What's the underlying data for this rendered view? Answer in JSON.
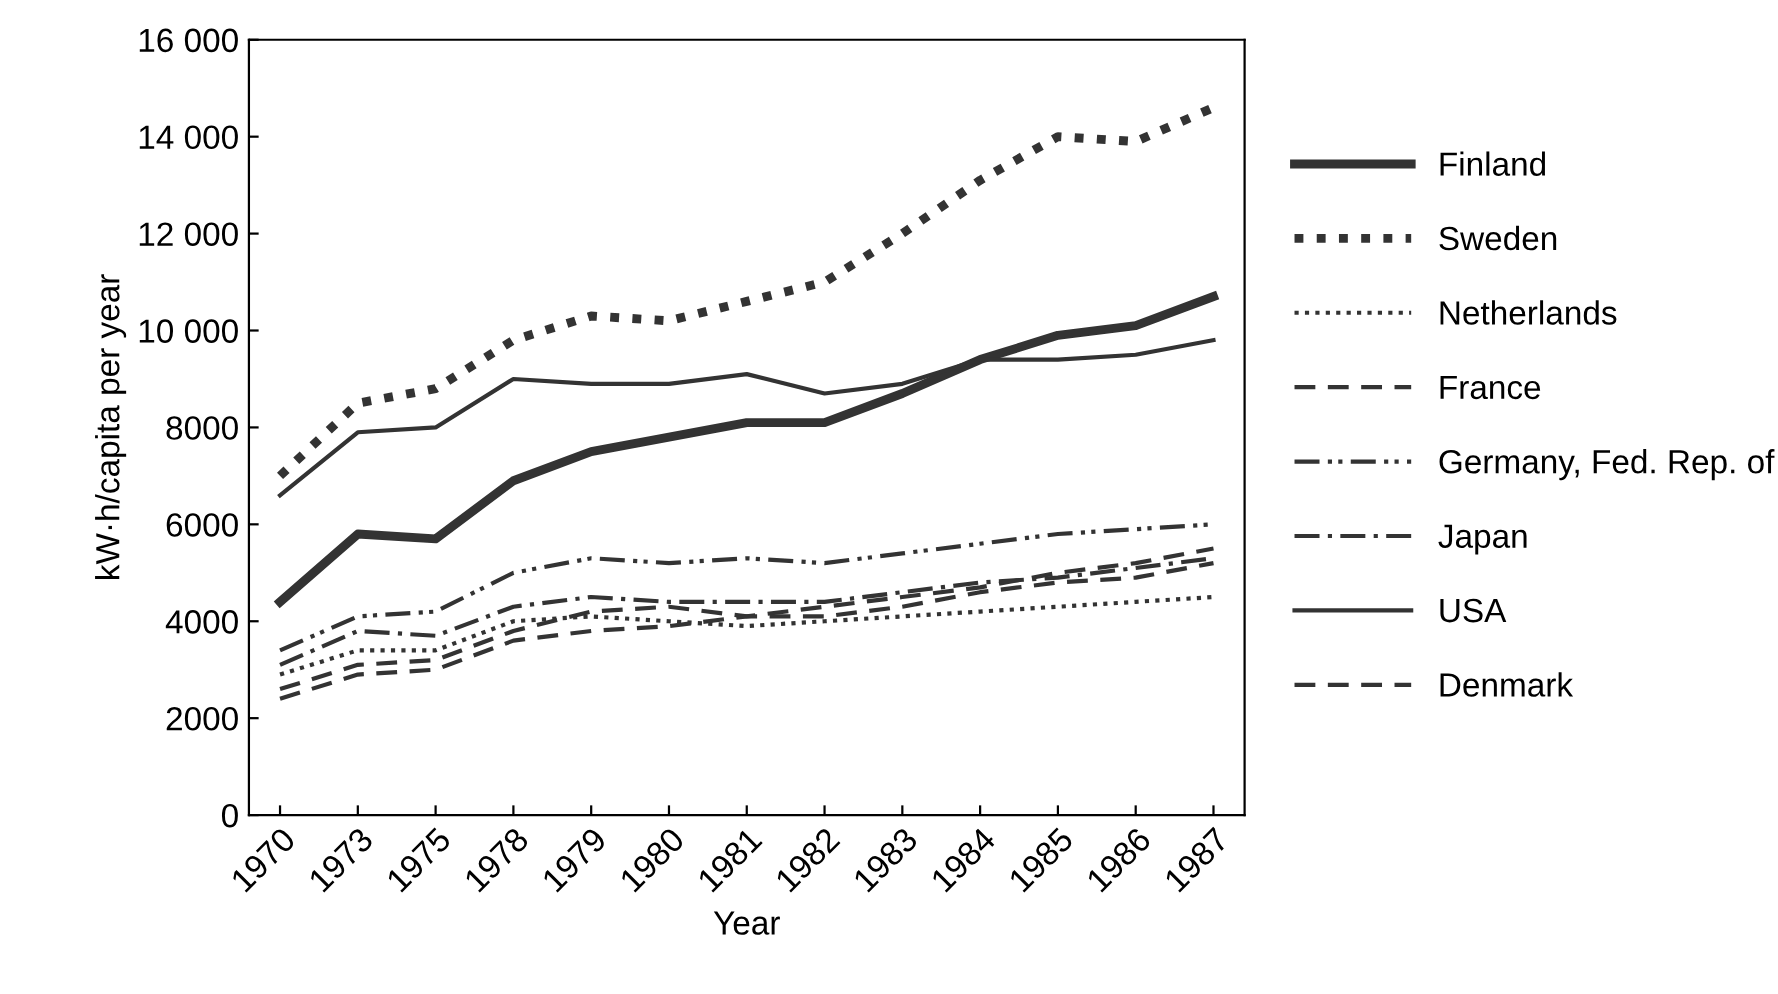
{
  "chart_data": {
    "type": "line",
    "xlabel": "Year",
    "ylabel": "kW·h/capita per year",
    "categories": [
      "1970",
      "1973",
      "1975",
      "1978",
      "1979",
      "1980",
      "1981",
      "1982",
      "1983",
      "1984",
      "1985",
      "1986",
      "1987"
    ],
    "ylim": [
      0,
      16000
    ],
    "yticks": [
      0,
      2000,
      4000,
      6000,
      8000,
      {
        "value": 10000,
        "label": "10 000"
      },
      {
        "value": 12000,
        "label": "12 000"
      },
      {
        "value": 14000,
        "label": "14 000"
      },
      {
        "value": 16000,
        "label": "16 000"
      }
    ],
    "grid": false,
    "legend": "right",
    "marker": "none",
    "series": [
      {
        "name": "Finland",
        "color": "#333333",
        "line_style": "solid",
        "values": [
          4400,
          5800,
          5700,
          6900,
          7500,
          7800,
          8100,
          8100,
          8700,
          9400,
          9900,
          10100,
          10700
        ]
      },
      {
        "name": "Sweden",
        "color": "#333333",
        "line_style": "dotted",
        "values": [
          7000,
          8500,
          8800,
          9800,
          10300,
          10200,
          10600,
          11000,
          12000,
          13100,
          14000,
          13900,
          14600
        ]
      },
      {
        "name": "Netherlands",
        "color": "#333333",
        "line_style": "dotted",
        "values": [
          2900,
          3400,
          3400,
          4000,
          4100,
          4000,
          3900,
          4000,
          4100,
          4200,
          4300,
          4400,
          4500
        ]
      },
      {
        "name": "France",
        "color": "#333333",
        "line_style": "dashed",
        "values": [
          2600,
          3100,
          3200,
          3800,
          4200,
          4300,
          4100,
          4300,
          4500,
          4700,
          5000,
          5200,
          5500
        ]
      },
      {
        "name": "Germany, Fed. Rep. of",
        "color": "#333333",
        "line_style": "dashdotdot",
        "values": [
          3400,
          4100,
          4200,
          5000,
          5300,
          5200,
          5300,
          5200,
          5400,
          5600,
          5800,
          5900,
          6000
        ]
      },
      {
        "name": "Japan",
        "color": "#333333",
        "line_style": "dashdot",
        "values": [
          3100,
          3800,
          3700,
          4300,
          4500,
          4400,
          4400,
          4400,
          4600,
          4800,
          4900,
          5100,
          5300
        ]
      },
      {
        "name": "USA",
        "color": "#333333",
        "line_style": "solid",
        "values": [
          6600,
          7900,
          8000,
          9000,
          8900,
          8900,
          9100,
          8700,
          8900,
          9400,
          9400,
          9500,
          9800
        ]
      },
      {
        "name": "Denmark",
        "color": "#333333",
        "line_style": "dashed",
        "values": [
          2400,
          2900,
          3000,
          3600,
          3800,
          3900,
          4100,
          4100,
          4300,
          4600,
          4800,
          4900,
          5200
        ]
      }
    ]
  }
}
